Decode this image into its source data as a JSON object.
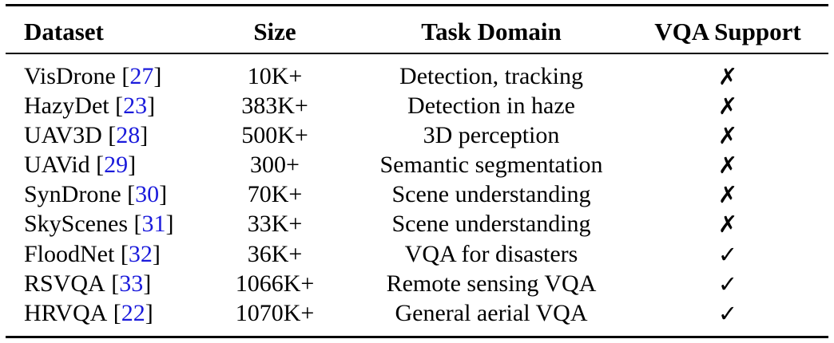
{
  "table": {
    "headers": {
      "dataset": "Dataset",
      "size": "Size",
      "domain": "Task Domain",
      "vqa": "VQA Support"
    },
    "rows": [
      {
        "name": "VisDrone",
        "ref": "27",
        "size": "10K+",
        "domain": "Detection, tracking",
        "vqa": "✗"
      },
      {
        "name": "HazyDet",
        "ref": "23",
        "size": "383K+",
        "domain": "Detection in haze",
        "vqa": "✗"
      },
      {
        "name": "UAV3D",
        "ref": "28",
        "size": "500K+",
        "domain": "3D perception",
        "vqa": "✗"
      },
      {
        "name": "UAVid",
        "ref": "29",
        "size": "300+",
        "domain": "Semantic segmentation",
        "vqa": "✗"
      },
      {
        "name": "SynDrone",
        "ref": "30",
        "size": "70K+",
        "domain": "Scene understanding",
        "vqa": "✗"
      },
      {
        "name": "SkyScenes",
        "ref": "31",
        "size": "33K+",
        "domain": "Scene understanding",
        "vqa": "✗"
      },
      {
        "name": "FloodNet",
        "ref": "32",
        "size": "36K+",
        "domain": "VQA for disasters",
        "vqa": "✓"
      },
      {
        "name": "RSVQA",
        "ref": "33",
        "size": "1066K+",
        "domain": "Remote sensing VQA",
        "vqa": "✓"
      },
      {
        "name": "HRVQA",
        "ref": "22",
        "size": "1070K+",
        "domain": "General aerial VQA",
        "vqa": "✓"
      }
    ]
  }
}
